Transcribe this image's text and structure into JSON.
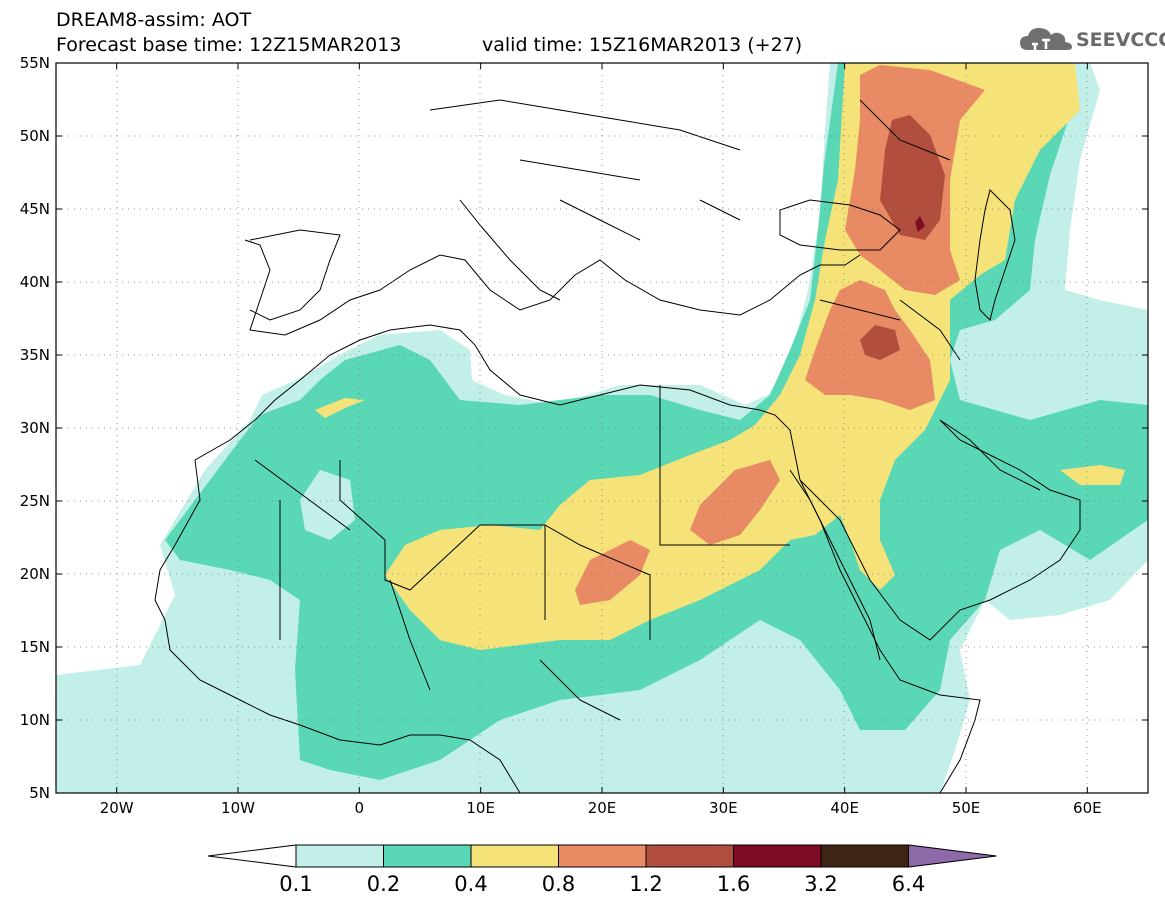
{
  "header": {
    "title": "DREAM8-assim: AOT",
    "base_time_label": "Forecast base time:",
    "base_time": "12Z15MAR2013",
    "valid_time_label": "valid time:",
    "valid_time": "15Z16MAR2013 (+27)"
  },
  "logo": {
    "text": "SEEVCCC",
    "icon": "cloud-icon"
  },
  "axes": {
    "x_ticks": [
      "20W",
      "10W",
      "0",
      "10E",
      "20E",
      "30E",
      "40E",
      "50E",
      "60E"
    ],
    "y_ticks": [
      "55N",
      "50N",
      "45N",
      "40N",
      "35N",
      "30N",
      "25N",
      "20N",
      "15N",
      "10N",
      "5N"
    ],
    "lon_range": [
      -25,
      65
    ],
    "lat_range": [
      5,
      55
    ],
    "grid": "dotted"
  },
  "colorbar": {
    "colors": [
      "#ffffff",
      "#c2f0e8",
      "#5ad8b6",
      "#f5e37a",
      "#e88a64",
      "#b24e3e",
      "#7d0c24",
      "#3e2415",
      "#8f6aa8"
    ],
    "labels": [
      "0.1",
      "0.2",
      "0.4",
      "0.8",
      "1.2",
      "1.6",
      "3.2",
      "6.4"
    ]
  },
  "legend_colors": {
    "land_outline": "#000000",
    "ocean": "#ffffff"
  }
}
